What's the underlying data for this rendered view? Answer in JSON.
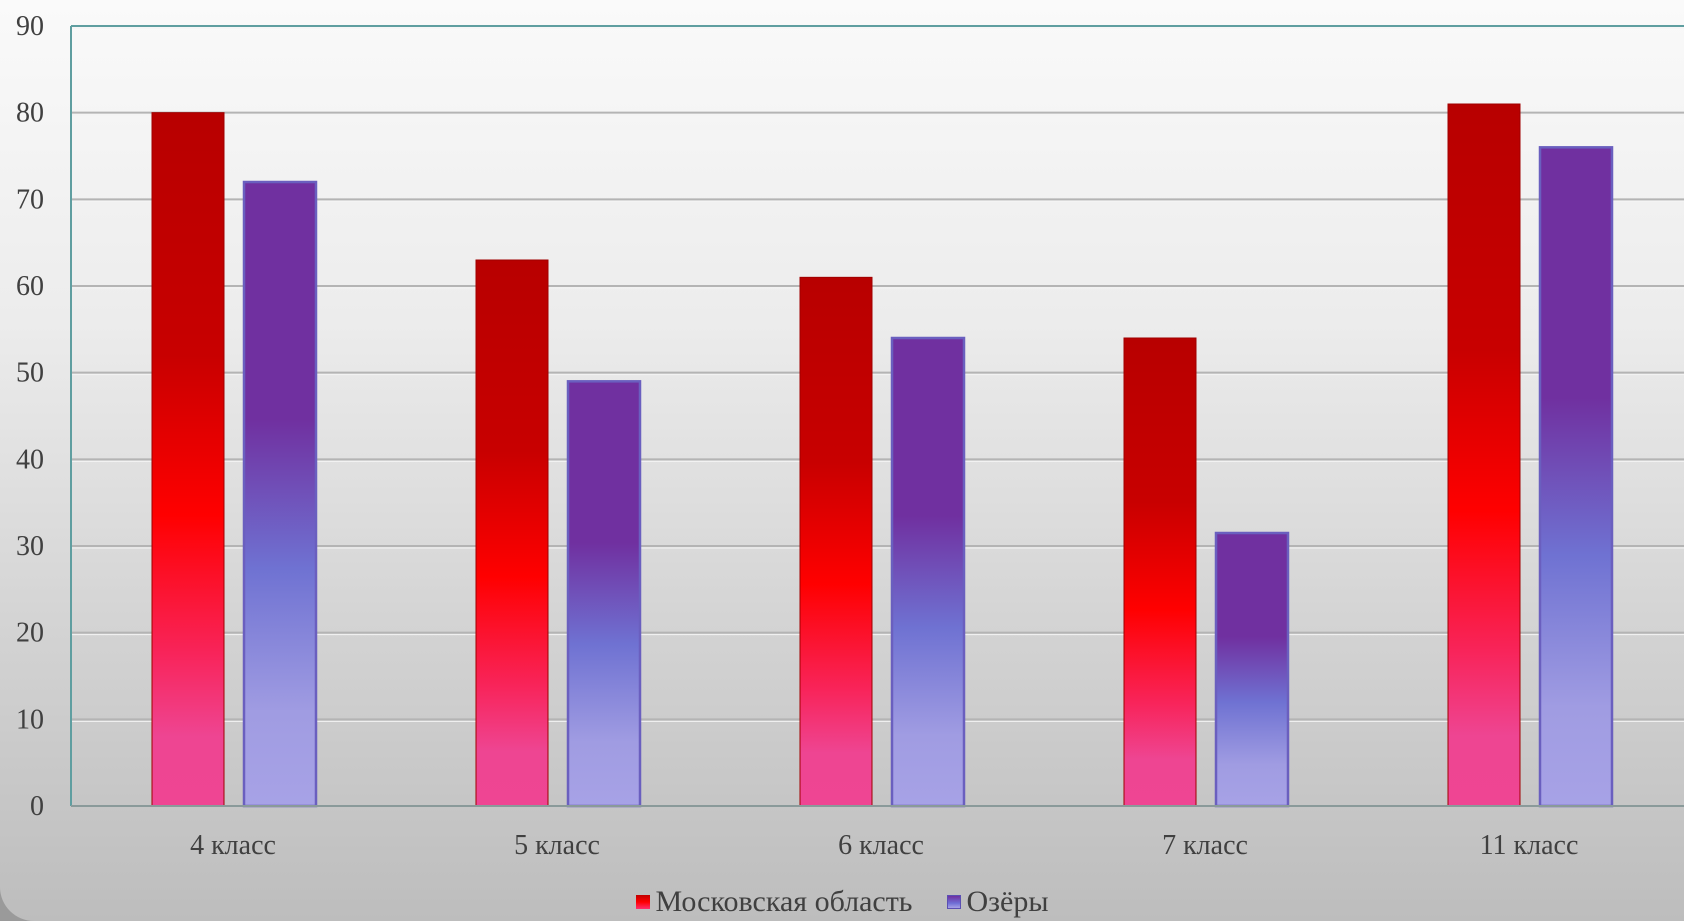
{
  "chart_data": {
    "type": "bar",
    "categories": [
      "4 класс",
      "5 класс",
      "6 класс",
      "7 класс",
      "11 класс"
    ],
    "series": [
      {
        "name": "Московская область",
        "values": [
          80,
          63,
          61,
          54,
          81
        ]
      },
      {
        "name": "Озёры",
        "values": [
          72,
          49,
          54,
          31.5,
          76
        ]
      }
    ],
    "ylim": [
      0,
      90
    ],
    "yticks": [
      0,
      10,
      20,
      30,
      40,
      50,
      60,
      70,
      80,
      90
    ],
    "grid": true,
    "legend_position": "bottom",
    "colors": {
      "series_0_top": "#c00000",
      "series_0_mid": "#ff0000",
      "series_0_bottom": "#ef4593",
      "series_1_top": "#7030a0",
      "series_1_mid": "#6f7ad6",
      "series_1_bottom": "#a7a2e6",
      "axis": "#5f9ea0",
      "grid": "#b0b0b0"
    }
  }
}
